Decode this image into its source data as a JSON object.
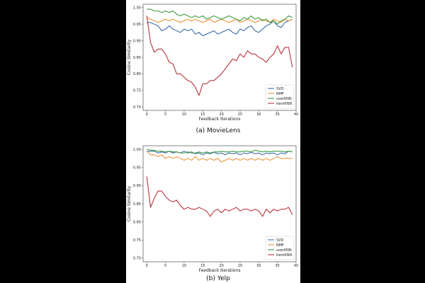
{
  "colors": {
    "SVD": "#3b6ea8",
    "NMF": "#e8923a",
    "userKNN": "#3e9a45",
    "itemKNN": "#b8323a"
  },
  "chart_data": [
    {
      "type": "line",
      "caption": "(a) MovieLens",
      "xlabel": "Feedback Iterations",
      "ylabel": "Cosine Similarity",
      "xlim": [
        -1,
        40
      ],
      "ylim": [
        0.69,
        1.01
      ],
      "xticks": [
        "0",
        "5",
        "10",
        "15",
        "20",
        "25",
        "30",
        "35",
        "40"
      ],
      "yticks": [
        "0.70",
        "0.75",
        "0.80",
        "0.85",
        "0.90",
        "0.95",
        "1.00"
      ],
      "legend": "bottom-right",
      "x": [
        0,
        1,
        2,
        3,
        4,
        5,
        6,
        7,
        8,
        9,
        10,
        11,
        12,
        13,
        14,
        15,
        16,
        17,
        18,
        19,
        20,
        21,
        22,
        23,
        24,
        25,
        26,
        27,
        28,
        29,
        30,
        31,
        32,
        33,
        34,
        35,
        36,
        37,
        38,
        39
      ],
      "series": [
        {
          "name": "SVD",
          "values": [
            0.955,
            0.955,
            0.95,
            0.945,
            0.93,
            0.935,
            0.945,
            0.935,
            0.93,
            0.925,
            0.935,
            0.93,
            0.935,
            0.92,
            0.925,
            0.915,
            0.92,
            0.925,
            0.93,
            0.92,
            0.925,
            0.93,
            0.935,
            0.925,
            0.92,
            0.935,
            0.93,
            0.94,
            0.945,
            0.93,
            0.925,
            0.935,
            0.945,
            0.95,
            0.96,
            0.945,
            0.94,
            0.955,
            0.96,
            0.965
          ]
        },
        {
          "name": "NMF",
          "values": [
            0.97,
            0.965,
            0.96,
            0.955,
            0.96,
            0.965,
            0.96,
            0.965,
            0.96,
            0.955,
            0.96,
            0.965,
            0.96,
            0.965,
            0.96,
            0.955,
            0.96,
            0.965,
            0.955,
            0.96,
            0.965,
            0.96,
            0.955,
            0.96,
            0.965,
            0.955,
            0.96,
            0.965,
            0.96,
            0.955,
            0.96,
            0.965,
            0.96,
            0.955,
            0.965,
            0.96,
            0.955,
            0.965,
            0.96,
            0.965
          ]
        },
        {
          "name": "userKNN",
          "values": [
            0.995,
            0.995,
            0.99,
            0.99,
            0.985,
            0.99,
            0.985,
            0.99,
            0.98,
            0.975,
            0.98,
            0.975,
            0.97,
            0.975,
            0.97,
            0.975,
            0.965,
            0.97,
            0.975,
            0.97,
            0.965,
            0.97,
            0.975,
            0.97,
            0.965,
            0.96,
            0.97,
            0.965,
            0.975,
            0.965,
            0.97,
            0.96,
            0.965,
            0.955,
            0.96,
            0.95,
            0.96,
            0.965,
            0.975,
            0.97
          ]
        },
        {
          "name": "itemKNN",
          "values": [
            0.975,
            0.895,
            0.865,
            0.875,
            0.875,
            0.86,
            0.835,
            0.83,
            0.8,
            0.8,
            0.79,
            0.78,
            0.775,
            0.76,
            0.735,
            0.77,
            0.77,
            0.78,
            0.78,
            0.79,
            0.8,
            0.815,
            0.83,
            0.845,
            0.84,
            0.86,
            0.85,
            0.87,
            0.86,
            0.86,
            0.85,
            0.845,
            0.835,
            0.85,
            0.86,
            0.885,
            0.86,
            0.88,
            0.88,
            0.82
          ]
        }
      ]
    },
    {
      "type": "line",
      "caption": "(b) Yelp",
      "xlabel": "Feedback Iterations",
      "ylabel": "Cosine Similarity",
      "xlim": [
        -1,
        40
      ],
      "ylim": [
        0.69,
        1.01
      ],
      "xticks": [
        "0",
        "5",
        "10",
        "15",
        "20",
        "25",
        "30",
        "35",
        "40"
      ],
      "yticks": [
        "0.70",
        "0.75",
        "0.80",
        "0.85",
        "0.90",
        "0.95",
        "1.00"
      ],
      "legend": "bottom-right",
      "x": [
        0,
        1,
        2,
        3,
        4,
        5,
        6,
        7,
        8,
        9,
        10,
        11,
        12,
        13,
        14,
        15,
        16,
        17,
        18,
        19,
        20,
        21,
        22,
        23,
        24,
        25,
        26,
        27,
        28,
        29,
        30,
        31,
        32,
        33,
        34,
        35,
        36,
        37,
        38,
        39
      ],
      "series": [
        {
          "name": "SVD",
          "values": [
            0.995,
            0.995,
            0.995,
            0.99,
            0.993,
            0.99,
            0.995,
            0.99,
            0.993,
            0.99,
            0.995,
            0.99,
            0.993,
            0.988,
            0.99,
            0.985,
            0.99,
            0.988,
            0.992,
            0.988,
            0.99,
            0.985,
            0.99,
            0.988,
            0.99,
            0.985,
            0.99,
            0.988,
            0.992,
            0.988,
            0.99,
            0.985,
            0.99,
            0.988,
            0.99,
            0.985,
            0.99,
            0.988,
            0.995,
            0.993
          ]
        },
        {
          "name": "NMF",
          "values": [
            0.995,
            0.985,
            0.985,
            0.98,
            0.985,
            0.975,
            0.98,
            0.975,
            0.98,
            0.975,
            0.97,
            0.975,
            0.97,
            0.98,
            0.97,
            0.975,
            0.97,
            0.975,
            0.97,
            0.975,
            0.965,
            0.97,
            0.975,
            0.97,
            0.975,
            0.97,
            0.975,
            0.97,
            0.975,
            0.97,
            0.975,
            0.97,
            0.975,
            0.97,
            0.975,
            0.98,
            0.975,
            0.975,
            0.975,
            0.975
          ]
        },
        {
          "name": "userKNN",
          "values": [
            1.0,
            0.998,
            0.997,
            0.995,
            0.995,
            0.993,
            0.995,
            0.993,
            0.993,
            0.99,
            0.99,
            0.993,
            0.99,
            0.99,
            0.993,
            0.99,
            0.993,
            0.99,
            0.993,
            0.993,
            0.995,
            0.993,
            0.993,
            0.995,
            0.993,
            0.993,
            0.995,
            0.995,
            0.993,
            0.998,
            0.995,
            0.993,
            0.995,
            0.993,
            0.995,
            0.995,
            0.995,
            0.993,
            0.995,
            0.993
          ]
        },
        {
          "name": "itemKNN",
          "values": [
            0.925,
            0.84,
            0.865,
            0.885,
            0.885,
            0.87,
            0.86,
            0.855,
            0.86,
            0.845,
            0.835,
            0.84,
            0.835,
            0.835,
            0.84,
            0.835,
            0.83,
            0.815,
            0.83,
            0.835,
            0.825,
            0.835,
            0.83,
            0.835,
            0.84,
            0.83,
            0.835,
            0.835,
            0.83,
            0.835,
            0.83,
            0.815,
            0.835,
            0.825,
            0.835,
            0.83,
            0.835,
            0.835,
            0.84,
            0.82
          ]
        }
      ]
    }
  ]
}
